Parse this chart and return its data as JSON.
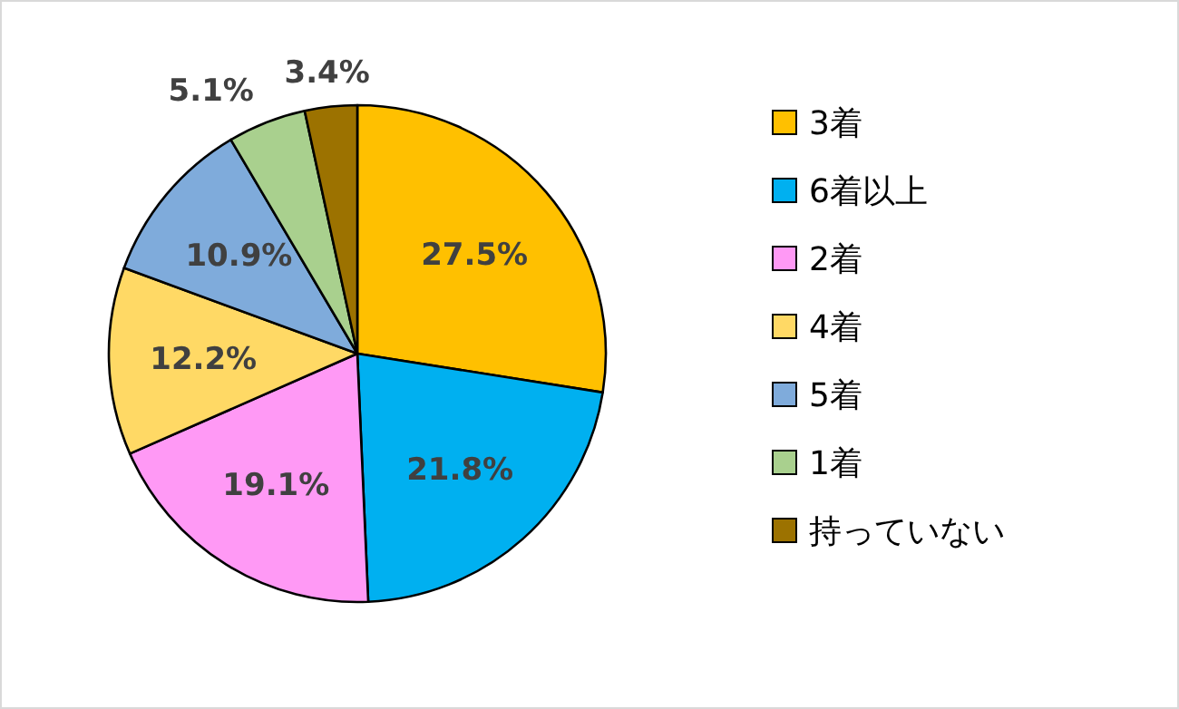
{
  "chart_data": {
    "type": "pie",
    "categories": [
      "3着",
      "6着以上",
      "2着",
      "4着",
      "5着",
      "1着",
      "持っていない"
    ],
    "values": [
      27.5,
      21.8,
      19.1,
      12.2,
      10.9,
      5.1,
      3.4
    ],
    "colors": [
      "#ffc000",
      "#00b0f0",
      "#ff99f5",
      "#ffd965",
      "#7fabdb",
      "#a9d08e",
      "#9c7200"
    ],
    "value_labels": [
      "27.5%",
      "21.8%",
      "19.1%",
      "12.2%",
      "10.9%",
      "5.1%",
      "3.4%"
    ],
    "legend": "right"
  }
}
